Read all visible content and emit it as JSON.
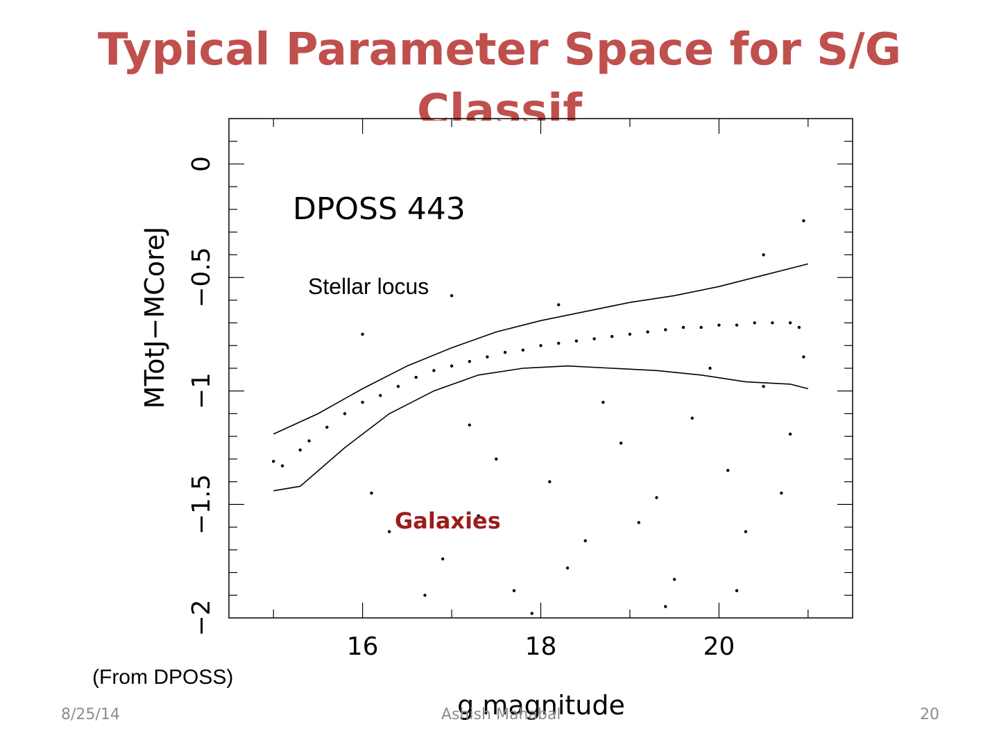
{
  "slide": {
    "title": "Typical Parameter Space for S/G Classif",
    "source_note": "(From DPOSS)",
    "footer": {
      "date": "8/25/14",
      "author": "Ashish Mahabal",
      "page": "20"
    }
  },
  "annotations": {
    "stellar_locus": "Stellar locus",
    "galaxies": "Galaxies"
  },
  "colors": {
    "title": "#c0504d",
    "galaxies_label": "#9b1c1c",
    "points": "#000000",
    "footer": "#8c8c8c"
  },
  "chart_data": {
    "type": "scatter",
    "title": "DPOSS 443",
    "xlabel": "g magnitude",
    "ylabel": "MTotJ−MCoreJ",
    "xlim": [
      14.5,
      21.5
    ],
    "ylim": [
      -2.0,
      0.2
    ],
    "xticks": [
      16,
      18,
      20
    ],
    "xtick_labels": [
      "16",
      "18",
      "20"
    ],
    "yticks": [
      0,
      -0.5,
      -1,
      -1.5,
      -2
    ],
    "ytick_labels": [
      "0",
      "−0.5",
      "−1",
      "−1.5",
      "−2"
    ],
    "grid": false,
    "series": [
      {
        "values": [
          [
            15.0,
            -1.31
          ],
          [
            15.3,
            -1.26
          ],
          [
            15.6,
            -1.16
          ],
          [
            16.0,
            -1.05
          ],
          [
            16.4,
            -0.98
          ],
          [
            16.8,
            -0.91
          ],
          [
            17.2,
            -0.87
          ],
          [
            17.6,
            -0.83
          ],
          [
            18.0,
            -0.8
          ],
          [
            18.4,
            -0.78
          ],
          [
            18.8,
            -0.76
          ],
          [
            19.2,
            -0.74
          ],
          [
            19.6,
            -0.72
          ],
          [
            20.0,
            -0.71
          ],
          [
            20.4,
            -0.7
          ],
          [
            20.8,
            -0.7
          ],
          [
            15.1,
            -1.33
          ],
          [
            15.4,
            -1.22
          ],
          [
            15.8,
            -1.1
          ],
          [
            16.2,
            -1.02
          ],
          [
            16.6,
            -0.94
          ],
          [
            17.0,
            -0.89
          ],
          [
            17.4,
            -0.85
          ],
          [
            17.8,
            -0.82
          ],
          [
            18.2,
            -0.79
          ],
          [
            18.6,
            -0.77
          ],
          [
            19.0,
            -0.75
          ],
          [
            19.4,
            -0.73
          ],
          [
            19.8,
            -0.72
          ],
          [
            20.2,
            -0.71
          ],
          [
            20.6,
            -0.7
          ],
          [
            20.9,
            -0.72
          ],
          [
            16.3,
            -1.62
          ],
          [
            16.9,
            -1.74
          ],
          [
            17.3,
            -1.55
          ],
          [
            17.7,
            -1.88
          ],
          [
            18.1,
            -1.4
          ],
          [
            18.5,
            -1.66
          ],
          [
            18.9,
            -1.23
          ],
          [
            19.3,
            -1.47
          ],
          [
            19.7,
            -1.12
          ],
          [
            20.1,
            -1.35
          ],
          [
            20.5,
            -0.98
          ],
          [
            20.8,
            -1.19
          ],
          [
            16.7,
            -1.9
          ],
          [
            17.5,
            -1.3
          ],
          [
            18.3,
            -1.78
          ],
          [
            19.1,
            -1.58
          ],
          [
            19.5,
            -1.83
          ],
          [
            20.3,
            -1.62
          ],
          [
            20.7,
            -1.45
          ],
          [
            16.1,
            -1.45
          ],
          [
            17.9,
            -1.98
          ],
          [
            18.7,
            -1.05
          ],
          [
            19.9,
            -0.9
          ],
          [
            20.95,
            -0.85
          ],
          [
            20.5,
            -0.4
          ],
          [
            20.95,
            -0.25
          ],
          [
            16.0,
            -0.75
          ],
          [
            17.0,
            -0.58
          ],
          [
            18.2,
            -0.62
          ],
          [
            19.4,
            -1.95
          ],
          [
            20.2,
            -1.88
          ],
          [
            17.2,
            -1.15
          ]
        ]
      }
    ],
    "boundaries": [
      {
        "values": [
          [
            15.0,
            -1.19
          ],
          [
            15.5,
            -1.1
          ],
          [
            16.0,
            -0.99
          ],
          [
            16.5,
            -0.89
          ],
          [
            17.0,
            -0.81
          ],
          [
            17.5,
            -0.74
          ],
          [
            18.0,
            -0.69
          ],
          [
            18.5,
            -0.65
          ],
          [
            19.0,
            -0.61
          ],
          [
            19.5,
            -0.58
          ],
          [
            20.0,
            -0.54
          ],
          [
            20.5,
            -0.49
          ],
          [
            21.0,
            -0.44
          ]
        ]
      },
      {
        "values": [
          [
            15.0,
            -1.44
          ],
          [
            15.3,
            -1.42
          ],
          [
            15.8,
            -1.25
          ],
          [
            16.3,
            -1.1
          ],
          [
            16.8,
            -1.0
          ],
          [
            17.3,
            -0.93
          ],
          [
            17.8,
            -0.9
          ],
          [
            18.3,
            -0.89
          ],
          [
            18.8,
            -0.9
          ],
          [
            19.3,
            -0.91
          ],
          [
            19.8,
            -0.93
          ],
          [
            20.3,
            -0.96
          ],
          [
            20.8,
            -0.97
          ],
          [
            21.0,
            -0.99
          ]
        ]
      }
    ]
  }
}
